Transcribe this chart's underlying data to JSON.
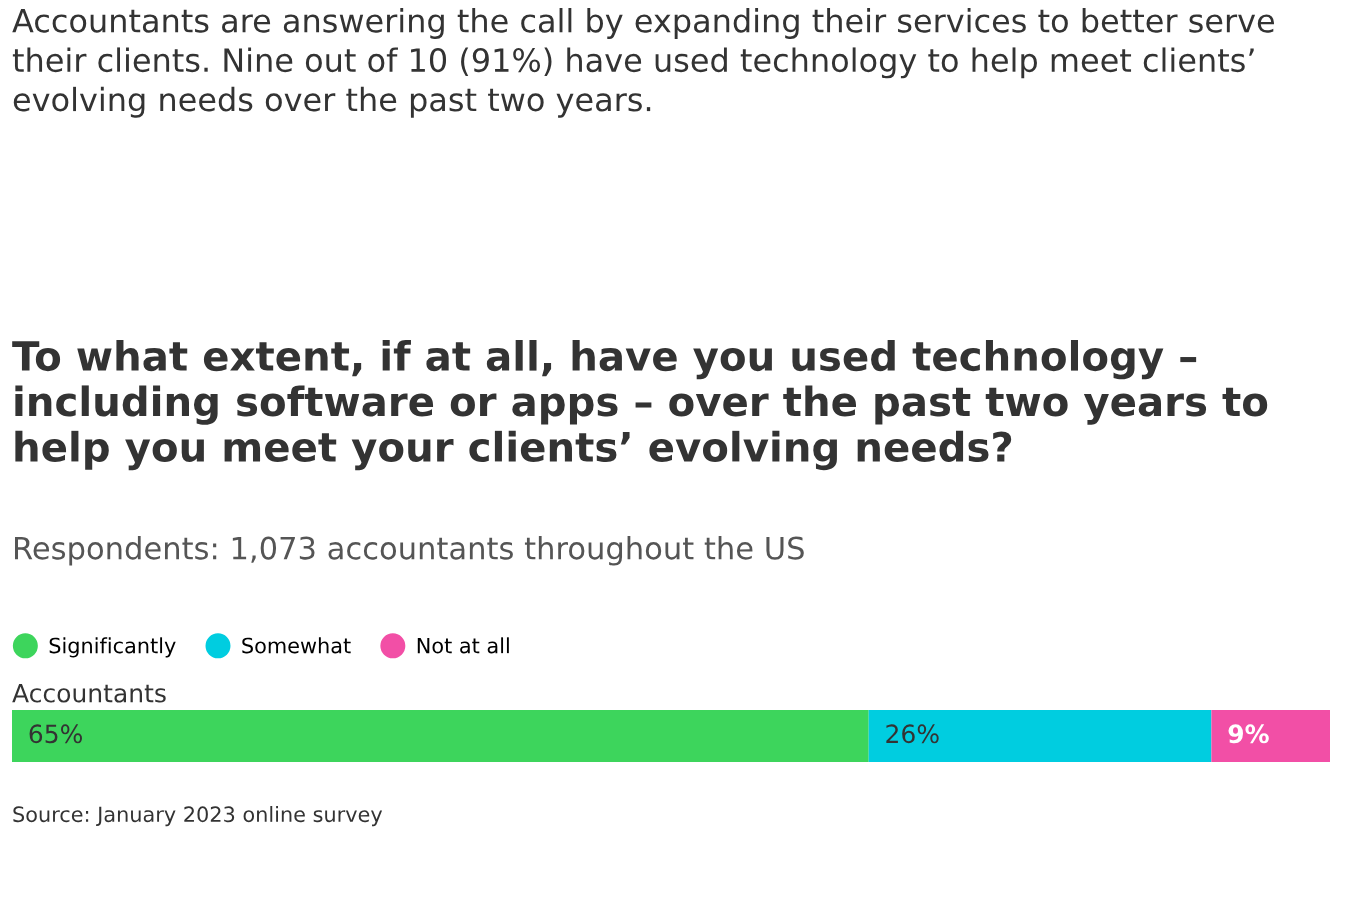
{
  "chart_data": {
    "type": "bar",
    "orientation": "horizontal",
    "stacked": true,
    "title": "To what extent, if at all, have you used technology – including software or apps – over the past two years to help you meet your clients’ evolving needs?",
    "subtitle": "Respondents: 1,073 accountants throughout the US",
    "annotations": [
      "Accountants are answering the call by expanding their services to better serve their clients. Nine out of 10 (91%) have used technology to help meet clients’ evolving needs over the past two years.",
      "Source: January 2023 online survey"
    ],
    "categories": [
      "Accountants"
    ],
    "series": [
      {
        "name": "Significantly",
        "color": "#3dd55c",
        "values": [
          65
        ],
        "value_labels": [
          "65%"
        ]
      },
      {
        "name": "Somewhat",
        "color": "#00cde0",
        "values": [
          26
        ],
        "value_labels": [
          "26%"
        ]
      },
      {
        "name": "Not at all",
        "color": "#f24fa6",
        "values": [
          9
        ],
        "value_labels": [
          "9%"
        ]
      }
    ],
    "legend": "top left",
    "marker": "circle"
  }
}
